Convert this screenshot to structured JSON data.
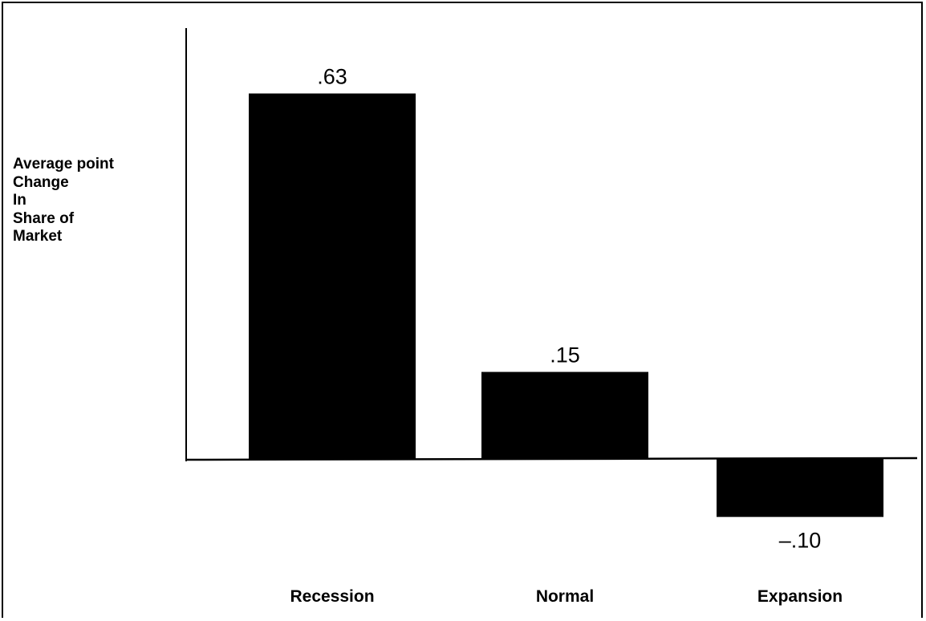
{
  "chart_data": {
    "type": "bar",
    "ylabel": "Average point\nChange\nIn\nShare of\nMarket",
    "categories": [
      "Recession",
      "Normal",
      "Expansion"
    ],
    "values": [
      0.63,
      0.15,
      -0.1
    ],
    "value_labels": [
      ".63",
      ".15",
      "–.10"
    ],
    "colors": {
      "bar": "#000000",
      "background": "#ffffff",
      "axis": "#000000"
    },
    "grid": false,
    "ylim": [
      -0.1,
      0.74
    ]
  }
}
